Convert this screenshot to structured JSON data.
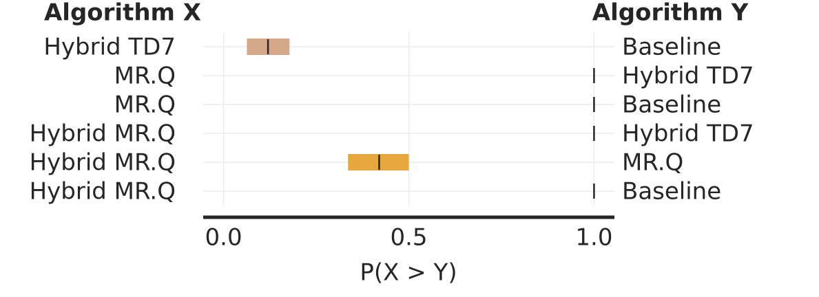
{
  "chart_data": {
    "type": "interval",
    "title_left": "Algorithm X",
    "title_right": "Algorithm Y",
    "xlabel": "P(X > Y)",
    "categories": [
      "Hybrid TD7",
      "MR.Q",
      "MR.Q",
      "Hybrid MR.Q",
      "Hybrid MR.Q",
      "Hybrid MR.Q"
    ],
    "right_labels": [
      "Baseline",
      "Hybrid TD7",
      "Baseline",
      "Hybrid TD7",
      "MR.Q",
      "Baseline"
    ],
    "values": [
      0.12,
      1.0,
      1.0,
      1.0,
      0.42,
      1.0
    ],
    "lower": [
      0.063,
      1.0,
      1.0,
      1.0,
      0.336,
      1.0
    ],
    "upper": [
      0.178,
      1.0,
      1.0,
      1.0,
      0.5,
      1.0
    ],
    "colors": [
      "#d5a88a",
      "#6a8fc0",
      "#6a8fc0",
      "#8cb06a",
      "#e6a83c",
      "#8cb06a"
    ],
    "xlim": [
      -0.055,
      1.055
    ],
    "xticks": [
      {
        "value": 0,
        "label": "0.0"
      },
      {
        "value": 0.5,
        "label": "0.5"
      },
      {
        "value": 1,
        "label": "1.0"
      }
    ],
    "grid": true
  }
}
